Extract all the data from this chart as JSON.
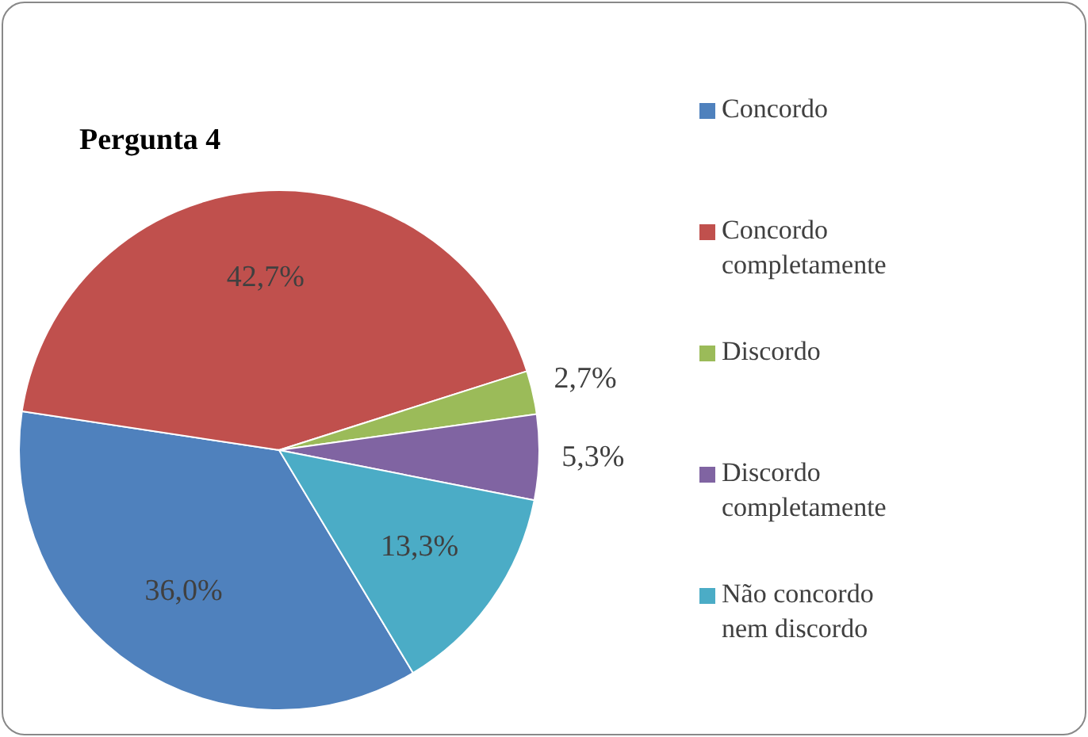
{
  "chart_data": {
    "type": "pie",
    "title": "Pergunta 4",
    "categories": [
      "Concordo",
      "Concordo completamente",
      "Discordo",
      "Discordo completamente",
      "Não concordo nem discordo"
    ],
    "values": [
      36.0,
      42.7,
      2.7,
      5.3,
      13.3
    ],
    "colors": [
      "#4f81bd",
      "#c0504d",
      "#9bbb59",
      "#8064a2",
      "#4bacc6"
    ],
    "value_labels": [
      "36,0%",
      "42,7%",
      "2,7%",
      "5,3%",
      "13,3%"
    ],
    "legend": "right"
  }
}
